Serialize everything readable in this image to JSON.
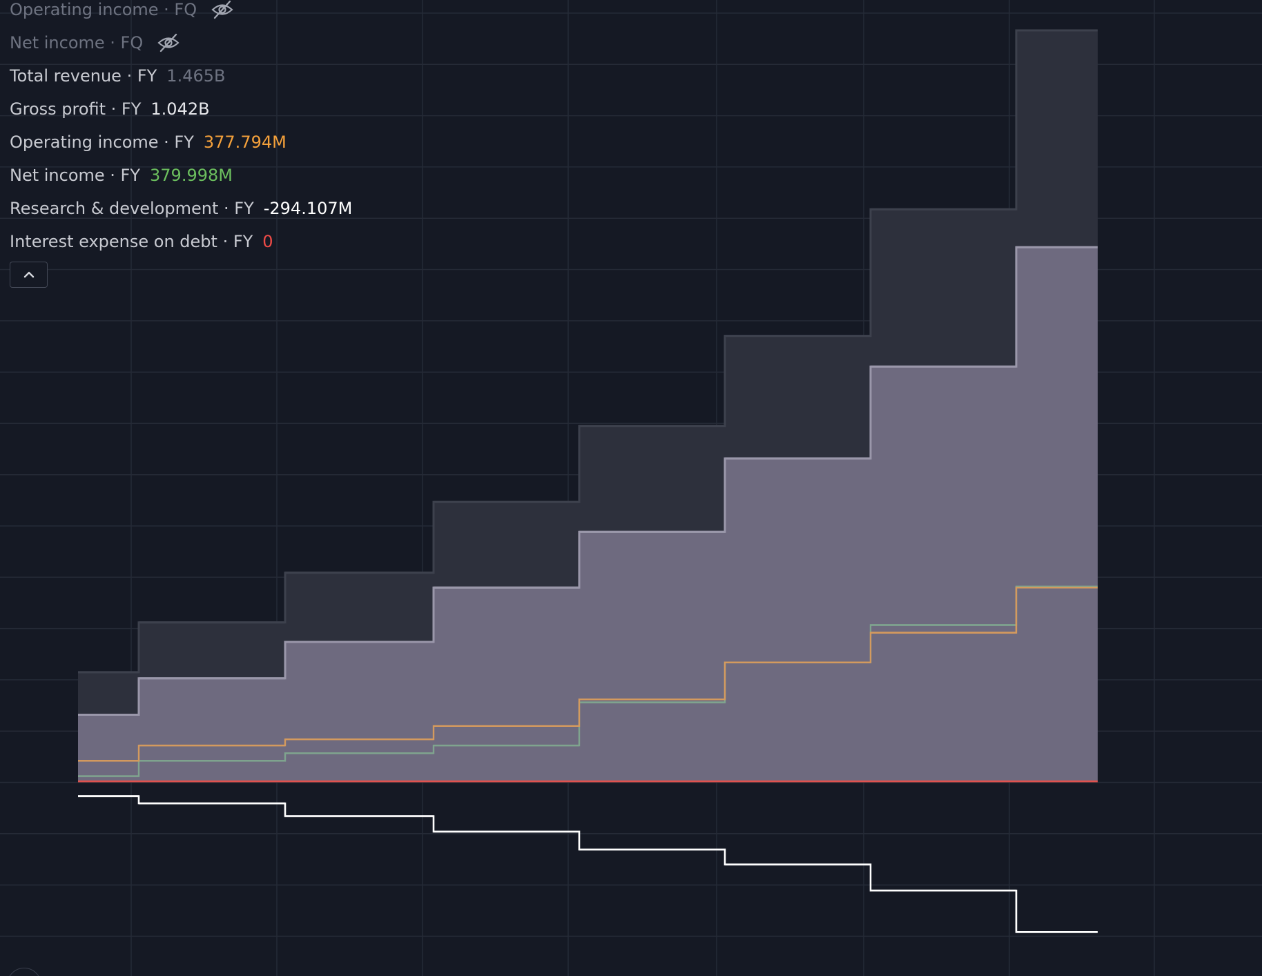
{
  "colors": {
    "background": "#151924",
    "grid": "#252a36",
    "total_revenue_line": "#3d414d",
    "total_revenue_fill": "#2d303c",
    "gross_profit_line": "#9a97aa",
    "gross_profit_fill": "#6e6a7f",
    "operating_income": "#d49a5e",
    "net_income": "#7fa48e",
    "research_development": "#ffffff",
    "interest_expense": "#e0524f",
    "muted_text": "#6e7381",
    "label_text": "#c8cad1"
  },
  "legend": {
    "rows": [
      {
        "name": "Operating income · FQ",
        "value": "",
        "value_color": "",
        "hidden": true,
        "icon": "eye-off-icon"
      },
      {
        "name": "Net income · FQ",
        "value": "",
        "value_color": "",
        "hidden": true,
        "icon": "eye-off-icon"
      },
      {
        "name": "Total revenue · FY",
        "value": "1.465B",
        "value_color": "#6e7381",
        "hidden": false,
        "icon": ""
      },
      {
        "name": "Gross profit · FY",
        "value": "1.042B",
        "value_color": "#e6e7eb",
        "hidden": false,
        "icon": ""
      },
      {
        "name": "Operating income · FY",
        "value": "377.794M",
        "value_color": "#f5a13b",
        "hidden": false,
        "icon": ""
      },
      {
        "name": "Net income · FY",
        "value": "379.998M",
        "value_color": "#6cbf5e",
        "hidden": false,
        "icon": ""
      },
      {
        "name": "Research & development · FY",
        "value": "-294.107M",
        "value_color": "#ffffff",
        "hidden": false,
        "icon": ""
      },
      {
        "name": "Interest expense on debt · FY",
        "value": "0",
        "value_color": "#f04b47",
        "hidden": false,
        "icon": ""
      }
    ],
    "collapse_icon": "chevron-up-icon"
  },
  "chart_data": {
    "type": "area",
    "step": true,
    "grid": true,
    "periods": 8,
    "ylim": [
      -0.3,
      1.5
    ],
    "series": [
      {
        "name": "Total revenue · FY",
        "key": "total_revenue",
        "style": "area",
        "values": [
          0.213,
          0.31,
          0.407,
          0.545,
          0.693,
          0.869,
          1.116,
          1.465
        ]
      },
      {
        "name": "Gross profit · FY",
        "key": "gross_profit",
        "style": "area",
        "values": [
          0.13,
          0.201,
          0.272,
          0.378,
          0.487,
          0.63,
          0.809,
          1.042
        ]
      },
      {
        "name": "Operating income · FY",
        "key": "operating_income",
        "style": "line",
        "values": [
          0.04,
          0.07,
          0.082,
          0.108,
          0.16,
          0.232,
          0.29,
          0.378
        ]
      },
      {
        "name": "Net income · FY",
        "key": "net_income",
        "style": "line",
        "values": [
          0.01,
          0.04,
          0.055,
          0.07,
          0.154,
          0.232,
          0.305,
          0.38
        ]
      },
      {
        "name": "Research & development · FY",
        "key": "research_development",
        "style": "line",
        "values": [
          -0.029,
          -0.043,
          -0.068,
          -0.098,
          -0.133,
          -0.162,
          -0.213,
          -0.294
        ]
      },
      {
        "name": "Interest expense on debt · FY",
        "key": "interest_expense",
        "style": "line",
        "values": [
          0,
          0,
          0,
          0,
          0,
          0,
          0,
          0
        ]
      }
    ]
  }
}
